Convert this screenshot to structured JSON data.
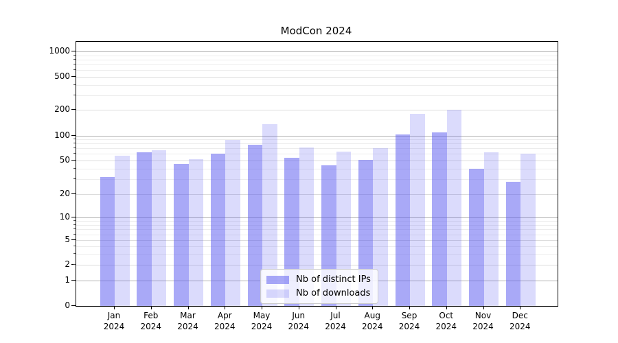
{
  "chart_data": {
    "type": "bar",
    "title": "ModCon 2024",
    "xlabel": "",
    "ylabel": "",
    "y_scale": "symlog",
    "y_ticks": [
      0,
      1,
      2,
      5,
      10,
      20,
      50,
      100,
      200,
      500,
      1000
    ],
    "categories": [
      [
        "Jan",
        "2024"
      ],
      [
        "Feb",
        "2024"
      ],
      [
        "Mar",
        "2024"
      ],
      [
        "Apr",
        "2024"
      ],
      [
        "May",
        "2024"
      ],
      [
        "Jun",
        "2024"
      ],
      [
        "Jul",
        "2024"
      ],
      [
        "Aug",
        "2024"
      ],
      [
        "Sep",
        "2024"
      ],
      [
        "Oct",
        "2024"
      ],
      [
        "Nov",
        "2024"
      ],
      [
        "Dec",
        "2024"
      ]
    ],
    "series": [
      {
        "name": "Nb of distinct IPs",
        "color": "rgba(90,90,240,0.52)",
        "values": [
          32,
          63,
          45,
          60,
          77,
          54,
          44,
          51,
          104,
          110,
          40,
          28
        ]
      },
      {
        "name": "Nb of downloads",
        "color": "rgba(90,90,240,0.22)",
        "values": [
          57,
          67,
          52,
          88,
          137,
          72,
          64,
          70,
          180,
          200,
          63,
          60
        ]
      }
    ],
    "legend_position": "lower center",
    "grid": true
  },
  "colors": {
    "grid_major_pow10": "#b0b0b0",
    "grid_major_sub": "#dcdcdc",
    "grid_minor": "#ececec",
    "axis": "#000000"
  }
}
